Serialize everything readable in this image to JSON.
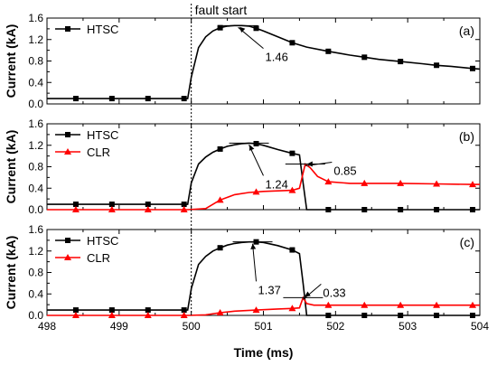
{
  "colors": {
    "htsc": "#000000",
    "clr": "#ff0000",
    "axis": "#000000",
    "fault_line": "#000000"
  },
  "fault_marker": {
    "x": 500,
    "label": "fault start"
  },
  "shared_x_axis": {
    "label": "Time (ms)",
    "range": [
      498,
      504
    ],
    "ticks": [
      498,
      499,
      500,
      501,
      502,
      503,
      504
    ],
    "minor_step": 0.5
  },
  "chart_data": [
    {
      "type": "line",
      "panel_label": "(a)",
      "ylabel": "Current (kA)",
      "ylim": [
        0,
        1.6
      ],
      "yticks": [
        "0.0",
        "0.4",
        "0.8",
        "1.2",
        "1.6"
      ],
      "legend_position": "top-left",
      "series": [
        {
          "name": "HTSC",
          "color_key": "htsc",
          "marker": "square",
          "x": [
            498,
            498.4,
            499,
            499.4,
            499.95,
            500.0,
            500.1,
            500.2,
            500.3,
            500.4,
            500.5,
            500.6,
            500.7,
            500.8,
            500.9,
            501.0,
            501.2,
            501.4,
            501.6,
            501.9,
            502.2,
            502.4,
            502.6,
            502.9,
            503.2,
            503.4,
            503.6,
            503.9,
            504.0
          ],
          "y": [
            0.1,
            0.1,
            0.1,
            0.1,
            0.1,
            0.5,
            1.05,
            1.25,
            1.36,
            1.42,
            1.45,
            1.46,
            1.46,
            1.45,
            1.41,
            1.36,
            1.25,
            1.14,
            1.06,
            0.98,
            0.91,
            0.87,
            0.83,
            0.79,
            0.75,
            0.72,
            0.7,
            0.66,
            0.65
          ],
          "marker_x": [
            498.4,
            498.9,
            499.4,
            499.9,
            500.4,
            500.9,
            501.4,
            501.9,
            502.4,
            502.9,
            503.4,
            503.9
          ]
        }
      ],
      "annotations": [
        {
          "text": "1.46",
          "x": 500.65,
          "y": 1.46,
          "text_x": 501.0,
          "text_y": 1.0
        }
      ]
    },
    {
      "type": "line",
      "panel_label": "(b)",
      "ylabel": "Current (kA)",
      "ylim": [
        0,
        1.6
      ],
      "yticks": [
        "0.0",
        "0.4",
        "0.8",
        "1.2",
        "1.6"
      ],
      "legend_position": "top-left",
      "series": [
        {
          "name": "HTSC",
          "color_key": "htsc",
          "marker": "square",
          "x": [
            498,
            498.4,
            499,
            499.4,
            499.95,
            500.0,
            500.1,
            500.2,
            500.3,
            500.4,
            500.5,
            500.6,
            500.7,
            500.8,
            500.9,
            501.0,
            501.2,
            501.4,
            501.5,
            501.55,
            501.6,
            501.9,
            502.4,
            503.0,
            503.4,
            504.0
          ],
          "y": [
            0.1,
            0.1,
            0.1,
            0.1,
            0.1,
            0.5,
            0.85,
            0.98,
            1.07,
            1.13,
            1.18,
            1.21,
            1.23,
            1.24,
            1.23,
            1.2,
            1.12,
            1.05,
            1.02,
            0.5,
            0.0,
            0.0,
            0.0,
            0.0,
            0.0,
            0.0
          ],
          "marker_x": [
            498.4,
            498.9,
            499.4,
            499.9,
            500.4,
            500.9,
            501.4,
            501.9,
            502.4,
            502.9,
            503.4,
            503.9
          ]
        },
        {
          "name": "CLR",
          "color_key": "clr",
          "marker": "triangle",
          "x": [
            498,
            498.4,
            499,
            499.4,
            499.95,
            500.2,
            500.4,
            500.6,
            500.8,
            501.0,
            501.2,
            501.4,
            501.5,
            501.58,
            501.65,
            501.75,
            501.9,
            502.2,
            502.4,
            502.9,
            503.4,
            503.9,
            504.0
          ],
          "y": [
            0.0,
            0.0,
            0.0,
            0.0,
            0.0,
            0.02,
            0.18,
            0.28,
            0.32,
            0.34,
            0.35,
            0.36,
            0.4,
            0.85,
            0.78,
            0.62,
            0.52,
            0.49,
            0.49,
            0.49,
            0.48,
            0.47,
            0.47
          ],
          "marker_x": [
            498.4,
            498.9,
            499.4,
            499.9,
            500.4,
            500.9,
            501.4,
            501.9,
            502.4,
            502.9,
            503.4,
            503.9
          ]
        }
      ],
      "annotations": [
        {
          "text": "1.24",
          "x": 500.8,
          "y": 1.24,
          "text_x": 501.0,
          "text_y": 0.6
        },
        {
          "text": "0.85",
          "x": 501.58,
          "y": 0.85,
          "text_x": 501.95,
          "text_y": 0.85
        }
      ]
    },
    {
      "type": "line",
      "panel_label": "(c)",
      "ylabel": "Current (kA)",
      "ylim": [
        0,
        1.6
      ],
      "yticks": [
        "0.0",
        "0.4",
        "0.8",
        "1.2",
        "1.6"
      ],
      "legend_position": "top-left",
      "series": [
        {
          "name": "HTSC",
          "color_key": "htsc",
          "marker": "square",
          "x": [
            498,
            498.4,
            499,
            499.4,
            499.95,
            500.0,
            500.1,
            500.2,
            500.3,
            500.4,
            500.5,
            500.6,
            500.7,
            500.8,
            500.9,
            501.0,
            501.2,
            501.4,
            501.5,
            501.55,
            501.6,
            501.9,
            502.4,
            503.0,
            503.4,
            504.0
          ],
          "y": [
            0.1,
            0.1,
            0.1,
            0.1,
            0.1,
            0.5,
            0.95,
            1.1,
            1.2,
            1.26,
            1.31,
            1.34,
            1.36,
            1.37,
            1.37,
            1.36,
            1.3,
            1.22,
            1.15,
            0.6,
            0.0,
            0.0,
            0.0,
            0.0,
            0.0,
            0.0
          ],
          "marker_x": [
            498.4,
            498.9,
            499.4,
            499.9,
            500.4,
            500.9,
            501.4,
            501.9,
            502.4,
            502.9,
            503.4,
            503.9
          ]
        },
        {
          "name": "CLR",
          "color_key": "clr",
          "marker": "triangle",
          "x": [
            498,
            498.4,
            499,
            499.4,
            499.95,
            500.2,
            500.4,
            500.6,
            500.9,
            501.2,
            501.4,
            501.5,
            501.55,
            501.6,
            501.7,
            501.9,
            502.4,
            502.9,
            503.4,
            503.9,
            504.0
          ],
          "y": [
            0.0,
            0.0,
            0.0,
            0.0,
            0.0,
            0.01,
            0.05,
            0.08,
            0.1,
            0.12,
            0.13,
            0.14,
            0.33,
            0.22,
            0.19,
            0.19,
            0.19,
            0.19,
            0.19,
            0.19,
            0.19
          ],
          "marker_x": [
            498.4,
            498.9,
            499.4,
            499.9,
            500.4,
            500.9,
            501.4,
            501.9,
            502.4,
            502.9,
            503.4,
            503.9
          ]
        }
      ],
      "annotations": [
        {
          "text": "1.37",
          "x": 500.85,
          "y": 1.37,
          "text_x": 500.9,
          "text_y": 0.6
        },
        {
          "text": "0.33",
          "x": 501.55,
          "y": 0.33,
          "text_x": 501.8,
          "text_y": 0.55
        }
      ]
    }
  ]
}
